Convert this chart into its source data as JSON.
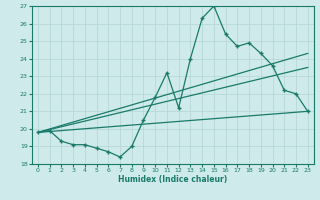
{
  "xlabel": "Humidex (Indice chaleur)",
  "xlim": [
    -0.5,
    23.5
  ],
  "ylim": [
    18,
    27
  ],
  "xticks": [
    0,
    1,
    2,
    3,
    4,
    5,
    6,
    7,
    8,
    9,
    10,
    11,
    12,
    13,
    14,
    15,
    16,
    17,
    18,
    19,
    20,
    21,
    22,
    23
  ],
  "yticks": [
    18,
    19,
    20,
    21,
    22,
    23,
    24,
    25,
    26,
    27
  ],
  "bg_color": "#ceeaea",
  "grid_color": "#b8d8d8",
  "line_color": "#1a7a6a",
  "series1_x": [
    0,
    1,
    2,
    3,
    4,
    5,
    6,
    7,
    8,
    9,
    10,
    11,
    12,
    13,
    14,
    15,
    16,
    17,
    18,
    19,
    20,
    21,
    22,
    23
  ],
  "series1_y": [
    19.8,
    19.9,
    19.3,
    19.1,
    19.1,
    18.9,
    18.7,
    18.4,
    19.0,
    20.5,
    21.8,
    23.2,
    21.2,
    24.0,
    26.3,
    27.0,
    25.4,
    24.7,
    24.9,
    24.3,
    23.6,
    22.2,
    22.0,
    21.0
  ],
  "trend1_x": [
    0,
    23
  ],
  "trend1_y": [
    19.8,
    21.0
  ],
  "trend2_x": [
    0,
    23
  ],
  "trend2_y": [
    19.8,
    23.5
  ],
  "trend3_x": [
    0,
    23
  ],
  "trend3_y": [
    19.8,
    24.3
  ]
}
